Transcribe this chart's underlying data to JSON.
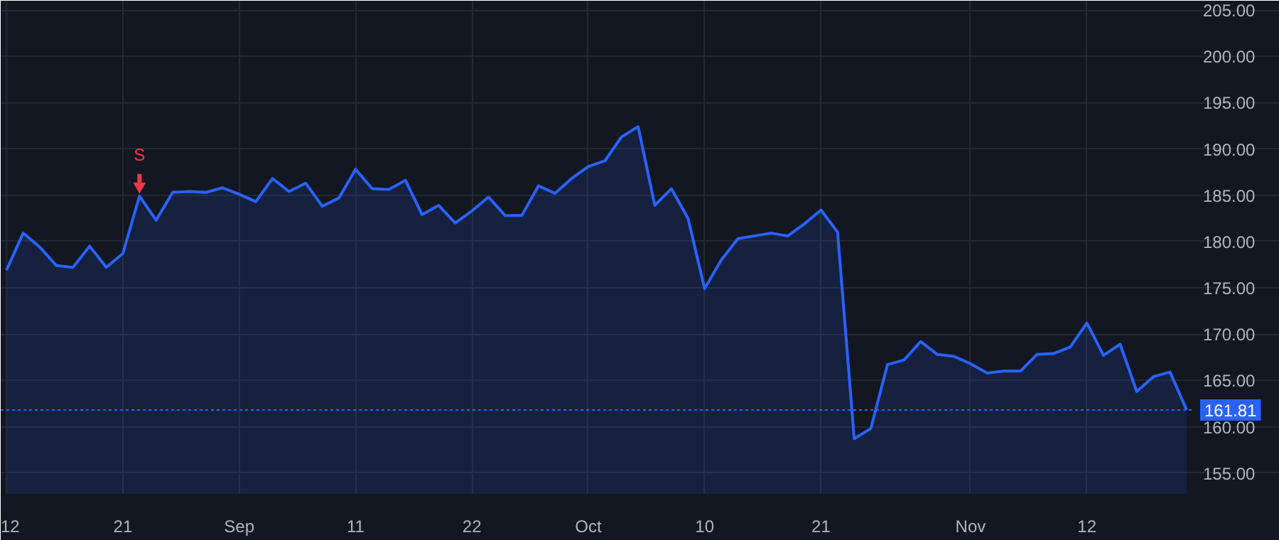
{
  "chart_data": {
    "type": "area",
    "categories": [
      "12",
      null,
      null,
      null,
      null,
      null,
      null,
      "21",
      null,
      null,
      null,
      null,
      null,
      null,
      "Sep",
      null,
      null,
      null,
      null,
      null,
      null,
      "11",
      null,
      null,
      null,
      null,
      null,
      null,
      "22",
      null,
      null,
      null,
      null,
      null,
      null,
      "Oct",
      null,
      null,
      null,
      null,
      null,
      null,
      "10",
      null,
      null,
      null,
      null,
      null,
      null,
      "21",
      null,
      null,
      null,
      null,
      null,
      null,
      null,
      null,
      "Nov",
      null,
      null,
      null,
      null,
      null,
      null,
      "12",
      null,
      null,
      null,
      null,
      null,
      null
    ],
    "series": [
      {
        "color": "#2962ff",
        "values": [
          176.9,
          180.9,
          179.4,
          177.4,
          177.2,
          179.5,
          177.2,
          178.7,
          184.9,
          182.3,
          185.3,
          185.4,
          185.3,
          185.8,
          185.1,
          184.3,
          186.8,
          185.4,
          186.3,
          183.8,
          184.7,
          187.8,
          185.7,
          185.6,
          186.6,
          182.9,
          183.9,
          182.0,
          183.3,
          184.8,
          182.8,
          182.8,
          186.0,
          185.2,
          186.8,
          188.1,
          188.7,
          191.3,
          192.4,
          183.9,
          185.7,
          182.5,
          174.9,
          178.0,
          180.3,
          180.6,
          180.9,
          180.6,
          181.9,
          183.4,
          181.0,
          158.7,
          159.8,
          166.7,
          167.2,
          169.2,
          167.8,
          167.6,
          166.8,
          165.8,
          166.0,
          166.0,
          167.8,
          167.9,
          168.6,
          171.2,
          167.7,
          168.9,
          163.8,
          165.4,
          165.9,
          161.81
        ]
      }
    ],
    "ylim": [
      152.75,
      206
    ],
    "yticks": [
      {
        "value": 155,
        "label": "155.00"
      },
      {
        "value": 160,
        "label": "160.00"
      },
      {
        "value": 165,
        "label": "165.00"
      },
      {
        "value": 170,
        "label": "170.00"
      },
      {
        "value": 175,
        "label": "175.00"
      },
      {
        "value": 180,
        "label": "180.00"
      },
      {
        "value": 185,
        "label": "185.00"
      },
      {
        "value": 190,
        "label": "190.00"
      },
      {
        "value": 195,
        "label": "195.00"
      },
      {
        "value": 200,
        "label": "200.00"
      },
      {
        "value": 205,
        "label": "205.00"
      }
    ],
    "grid": true,
    "annotations": [
      {
        "text": "S",
        "y": 184.9
      }
    ],
    "ref_lines": [
      {
        "axis": "y",
        "value": 161.81,
        "label": "161.81",
        "color": "#2962ff",
        "line_style": "dotted"
      }
    ]
  }
}
